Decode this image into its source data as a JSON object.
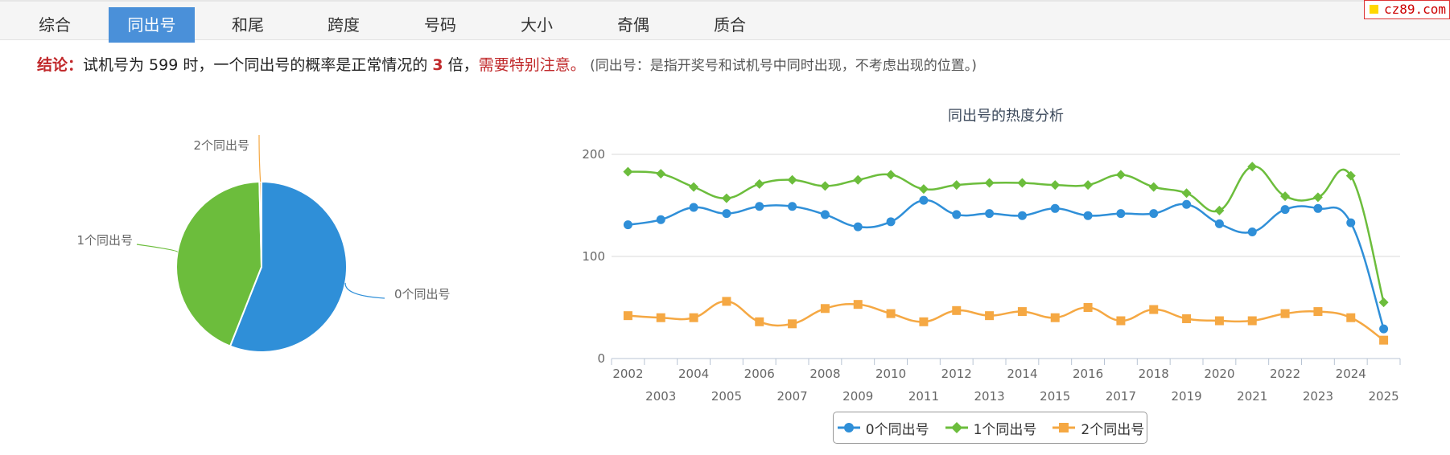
{
  "tabs": [
    {
      "label": "综合",
      "active": false
    },
    {
      "label": "同出号",
      "active": true
    },
    {
      "label": "和尾",
      "active": false
    },
    {
      "label": "跨度",
      "active": false
    },
    {
      "label": "号码",
      "active": false
    },
    {
      "label": "大小",
      "active": false
    },
    {
      "label": "奇偶",
      "active": false
    },
    {
      "label": "质合",
      "active": false
    }
  ],
  "watermark": "cz89.com",
  "conclusion": {
    "label": "结论：",
    "text1": "试机号为 599 时，一个同出号的概率是正常情况的 ",
    "multiplier": "3",
    "text2": " 倍，",
    "warning": "需要特别注意。",
    "note": " (同出号：是指开奖号和试机号中同时出现，不考虑出现的位置。)"
  },
  "colors": {
    "zero": "#2f8fd8",
    "one": "#6cbd3c",
    "two": "#f5a843",
    "tab_active": "#4a90d9",
    "accent_red": "#c0282a"
  },
  "chart_data": [
    {
      "type": "pie",
      "slices": [
        {
          "label": "0个同出号",
          "value": 56,
          "color": "#2f8fd8"
        },
        {
          "label": "1个同出号",
          "value": 43.6,
          "color": "#6cbd3c"
        },
        {
          "label": "2个同出号",
          "value": 0.4,
          "color": "#f5a843"
        }
      ]
    },
    {
      "type": "line",
      "title": "同出号的热度分析",
      "x": [
        "2002",
        "2003",
        "2004",
        "2005",
        "2006",
        "2007",
        "2008",
        "2009",
        "2010",
        "2011",
        "2012",
        "2013",
        "2014",
        "2015",
        "2016",
        "2017",
        "2018",
        "2019",
        "2020",
        "2021",
        "2022",
        "2023",
        "2024",
        "2025"
      ],
      "ylim": [
        0,
        200
      ],
      "yticks": [
        0,
        100,
        200
      ],
      "grid": true,
      "legend_position": "bottom-center",
      "series": [
        {
          "name": "0个同出号",
          "color": "#2f8fd8",
          "marker": "circle",
          "values": [
            131,
            136,
            148,
            142,
            149,
            149,
            141,
            129,
            134,
            155,
            141,
            142,
            140,
            147,
            140,
            142,
            142,
            151,
            132,
            124,
            146,
            147,
            133,
            29
          ]
        },
        {
          "name": "1个同出号",
          "color": "#6cbd3c",
          "marker": "diamond",
          "values": [
            183,
            181,
            168,
            157,
            171,
            175,
            169,
            175,
            180,
            166,
            170,
            172,
            172,
            170,
            170,
            180,
            168,
            162,
            145,
            188,
            159,
            158,
            179,
            55
          ]
        },
        {
          "name": "2个同出号",
          "color": "#f5a843",
          "marker": "square",
          "values": [
            42,
            40,
            40,
            56,
            36,
            34,
            49,
            53,
            44,
            36,
            47,
            42,
            46,
            40,
            50,
            37,
            48,
            39,
            37,
            37,
            44,
            46,
            40,
            18
          ]
        }
      ]
    }
  ]
}
